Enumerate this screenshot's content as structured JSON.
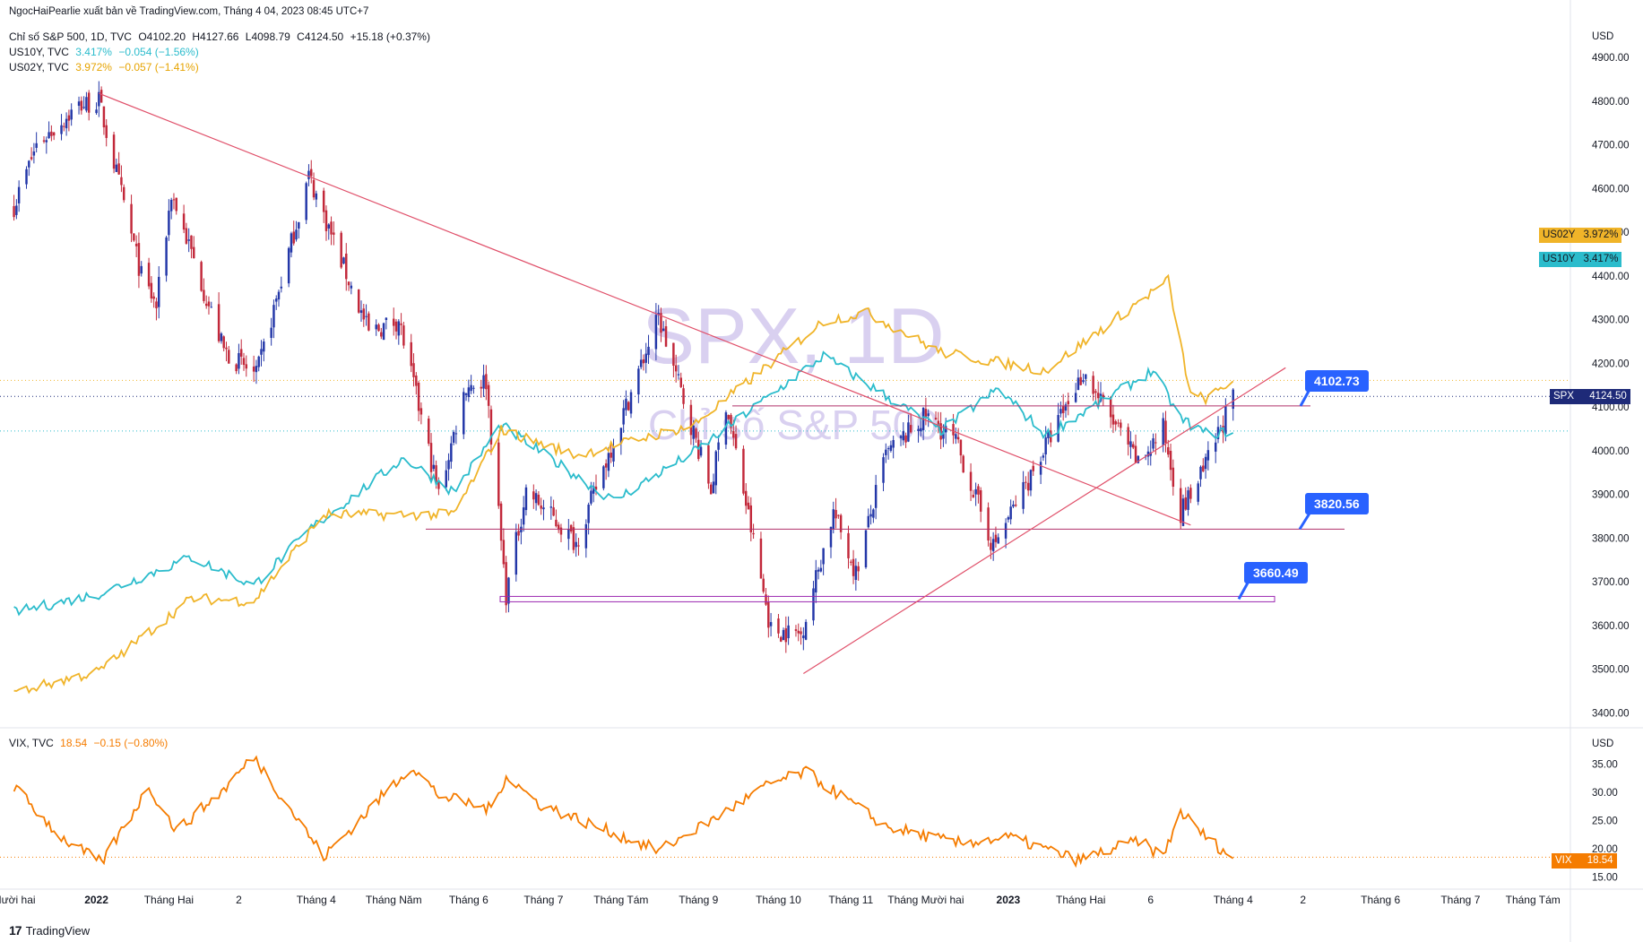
{
  "credit": "NgocHaiPearlie xuất bản về TradingView.com, Tháng 4 04, 2023 08:45 UTC+7",
  "logo_text": "TradingView",
  "watermark": {
    "symbol": "SPX, 1D",
    "description": "Chỉ số S&P 500"
  },
  "legend": {
    "spx": {
      "title": "Chỉ số S&P 500, 1D, TVC",
      "o": "O4102.20",
      "h": "H4127.66",
      "l": "L4098.79",
      "c": "C4124.50",
      "chg": "+15.18 (+0.37%)"
    },
    "us10y": {
      "title": "US10Y, TVC",
      "value": "3.417%",
      "chg": "−0.054 (−1.56%)"
    },
    "us02y": {
      "title": "US02Y, TVC",
      "value": "3.972%",
      "chg": "−0.057 (−1.41%)"
    },
    "vix": {
      "title": "VIX, TVC",
      "value": "18.54",
      "chg": "−0.15 (−0.80%)"
    }
  },
  "price_tags": {
    "us02y": {
      "label": "US02Y",
      "value": "3.972%"
    },
    "us10y": {
      "label": "US10Y",
      "value": "3.417%"
    },
    "spx": {
      "label": "SPX",
      "value": "4124.50"
    },
    "vix": {
      "label": "VIX",
      "value": "18.54"
    }
  },
  "callouts": {
    "c1": "4102.73",
    "c2": "3820.56",
    "c3": "3660.49"
  },
  "colors": {
    "up": "#2337a8",
    "down": "#c2283a",
    "us10y": "#2bbccc",
    "us02y": "#f0b429",
    "vix": "#f57c00",
    "trend": "#e0506a",
    "support": "#b0306a",
    "callout": "#2962ff",
    "watermark": "#d9d0f0",
    "spx_tag": "#1e2a78"
  },
  "chart_data": [
    {
      "type": "candlestick",
      "title": "Chỉ số S&P 500, 1D, TVC",
      "ylabel": "USD",
      "yticks": [
        "3400.00",
        "3500.00",
        "3600.00",
        "3700.00",
        "3800.00",
        "3900.00",
        "4000.00",
        "4100.00",
        "4200.00",
        "4300.00",
        "4400.00",
        "4500.00",
        "4600.00",
        "4700.00",
        "4800.00",
        "4900.00"
      ],
      "ylim": [
        3370,
        4960
      ],
      "xticks": [
        "Mười hai",
        "2022",
        "Tháng Hai",
        "2",
        "Tháng 4",
        "Tháng Năm",
        "Tháng 6",
        "Tháng 7",
        "Tháng Tám",
        "Tháng 9",
        "Tháng 10",
        "Tháng 11",
        "Tháng Mười hai",
        "2023",
        "Tháng Hai",
        "6",
        "Tháng 4",
        "2",
        "Tháng 6",
        "Tháng 7",
        "Tháng Tám"
      ],
      "close_waypoints": [
        [
          "2021-12-01",
          4560
        ],
        [
          "2021-12-10",
          4700
        ],
        [
          "2021-12-27",
          4790
        ],
        [
          "2022-01-04",
          4800
        ],
        [
          "2022-01-21",
          4400
        ],
        [
          "2022-01-27",
          4330
        ],
        [
          "2022-02-02",
          4590
        ],
        [
          "2022-02-23",
          4230
        ],
        [
          "2022-03-08",
          4170
        ],
        [
          "2022-03-29",
          4630
        ],
        [
          "2022-04-22",
          4270
        ],
        [
          "2022-05-04",
          4300
        ],
        [
          "2022-05-20",
          3900
        ],
        [
          "2022-05-31",
          4150
        ],
        [
          "2022-06-08",
          4160
        ],
        [
          "2022-06-16",
          3670
        ],
        [
          "2022-06-24",
          3910
        ],
        [
          "2022-07-14",
          3790
        ],
        [
          "2022-08-16",
          4305
        ],
        [
          "2022-09-06",
          3910
        ],
        [
          "2022-09-12",
          4110
        ],
        [
          "2022-09-30",
          3590
        ],
        [
          "2022-10-12",
          3580
        ],
        [
          "2022-10-25",
          3860
        ],
        [
          "2022-11-03",
          3720
        ],
        [
          "2022-11-15",
          3990
        ],
        [
          "2022-12-01",
          4080
        ],
        [
          "2022-12-13",
          4020
        ],
        [
          "2022-12-28",
          3780
        ],
        [
          "2023-01-17",
          4000
        ],
        [
          "2023-02-02",
          4180
        ],
        [
          "2023-02-24",
          3970
        ],
        [
          "2023-03-06",
          4050
        ],
        [
          "2023-03-13",
          3860
        ],
        [
          "2023-03-22",
          3950
        ],
        [
          "2023-04-03",
          4124.5
        ]
      ],
      "levels": [
        {
          "label": "4102.73",
          "value": 4102.73
        },
        {
          "label": "3820.56",
          "value": 3820.56
        },
        {
          "label": "3660.49",
          "value": 3660.49
        }
      ],
      "trendlines": [
        {
          "from": [
            "2022-01-04",
            4818
          ],
          "to": [
            "2023-03-17",
            3830
          ]
        },
        {
          "from": [
            "2022-10-13",
            3490
          ],
          "to": [
            "2023-04-24",
            4190
          ]
        }
      ]
    },
    {
      "type": "line",
      "overlay": true,
      "series": [
        {
          "name": "US10Y, TVC",
          "last": "3.417%",
          "waypoints": [
            [
              "2021-12-01",
              1.43
            ],
            [
              "2022-01-04",
              1.63
            ],
            [
              "2022-02-10",
              2.03
            ],
            [
              "2022-03-07",
              1.72
            ],
            [
              "2022-03-30",
              2.35
            ],
            [
              "2022-05-06",
              3.12
            ],
            [
              "2022-05-26",
              2.75
            ],
            [
              "2022-06-14",
              3.48
            ],
            [
              "2022-07-29",
              2.65
            ],
            [
              "2022-08-31",
              3.2
            ],
            [
              "2022-10-21",
              4.24
            ],
            [
              "2022-11-15",
              3.8
            ],
            [
              "2022-12-07",
              3.42
            ],
            [
              "2022-12-30",
              3.88
            ],
            [
              "2023-01-18",
              3.37
            ],
            [
              "2023-03-02",
              4.08
            ],
            [
              "2023-03-13",
              3.55
            ],
            [
              "2023-03-24",
              3.38
            ],
            [
              "2023-04-03",
              3.417
            ]
          ]
        },
        {
          "name": "US02Y, TVC",
          "last": "3.972%",
          "waypoints": [
            [
              "2021-12-01",
              0.55
            ],
            [
              "2022-01-04",
              0.78
            ],
            [
              "2022-02-10",
              1.58
            ],
            [
              "2022-03-07",
              1.55
            ],
            [
              "2022-04-04",
              2.5
            ],
            [
              "2022-05-26",
              2.5
            ],
            [
              "2022-06-14",
              3.43
            ],
            [
              "2022-07-14",
              3.15
            ],
            [
              "2022-08-30",
              3.48
            ],
            [
              "2022-10-21",
              4.62
            ],
            [
              "2022-11-07",
              4.72
            ],
            [
              "2022-12-07",
              4.28
            ],
            [
              "2023-01-18",
              4.08
            ],
            [
              "2023-03-08",
              5.07
            ],
            [
              "2023-03-17",
              3.8
            ],
            [
              "2023-03-24",
              3.77
            ],
            [
              "2023-04-03",
              3.972
            ]
          ]
        }
      ]
    },
    {
      "type": "line",
      "title": "VIX, TVC",
      "ylabel": "USD",
      "yticks": [
        "15.00",
        "20.00",
        "25.00",
        "30.00",
        "35.00"
      ],
      "ylim": [
        14.0,
        37.0
      ],
      "series": [
        {
          "name": "VIX, TVC",
          "last": "18.54",
          "waypoints": [
            [
              "2021-12-01",
              31.0
            ],
            [
              "2021-12-20",
              22.0
            ],
            [
              "2022-01-05",
              17.5
            ],
            [
              "2022-01-24",
              31.0
            ],
            [
              "2022-02-04",
              23.2
            ],
            [
              "2022-02-23",
              30.5
            ],
            [
              "2022-03-07",
              36.4
            ],
            [
              "2022-04-04",
              18.6
            ],
            [
              "2022-05-09",
              34.7
            ],
            [
              "2022-05-20",
              29.5
            ],
            [
              "2022-06-10",
              27.0
            ],
            [
              "2022-06-16",
              33.0
            ],
            [
              "2022-06-29",
              28.0
            ],
            [
              "2022-08-16",
              19.7
            ],
            [
              "2022-09-06",
              25.0
            ],
            [
              "2022-09-30",
              31.6
            ],
            [
              "2022-10-14",
              33.6
            ],
            [
              "2022-11-15",
              24.0
            ],
            [
              "2022-12-13",
              21.0
            ],
            [
              "2023-01-04",
              22.0
            ],
            [
              "2023-01-31",
              18.0
            ],
            [
              "2023-02-24",
              21.5
            ],
            [
              "2023-03-06",
              18.6
            ],
            [
              "2023-03-13",
              26.6
            ],
            [
              "2023-03-24",
              21.7
            ],
            [
              "2023-04-03",
              18.54
            ]
          ]
        }
      ]
    }
  ]
}
